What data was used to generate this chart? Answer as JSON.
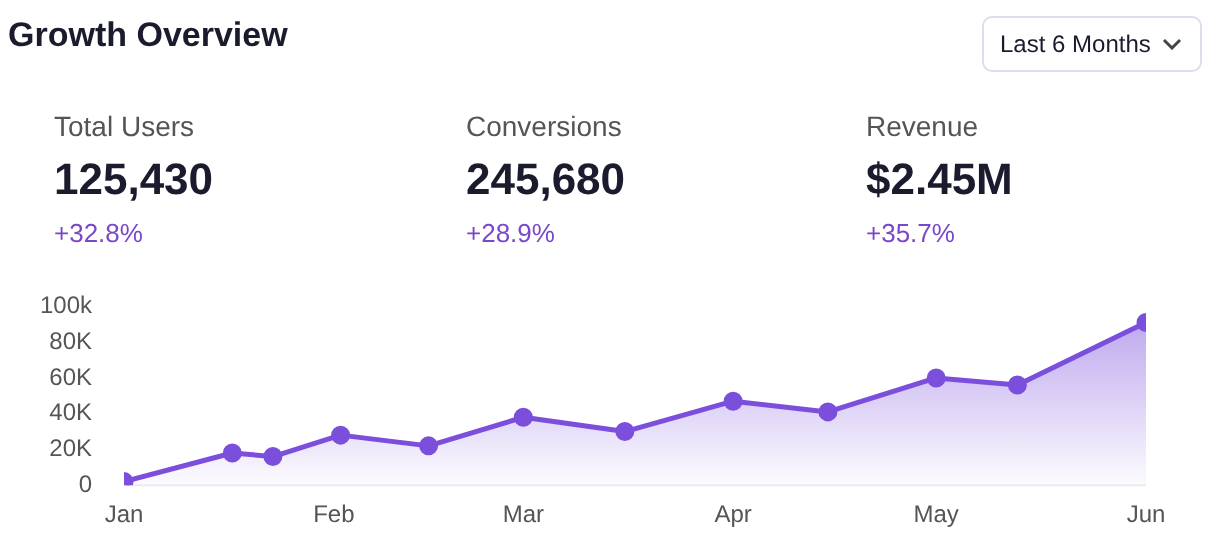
{
  "chart_data": {
    "type": "area",
    "title": "Growth Overview",
    "annotations": [
      "Last 6 Months",
      "Total Users",
      "125,430",
      "+32.8%",
      "Conversions",
      "245,680",
      "+28.9%",
      "Revenue",
      "$2.45M",
      "+35.7%"
    ],
    "x": [
      "--01-01",
      "--01-17",
      "--01-23",
      "--02-02",
      "--02-15",
      "--03-01",
      "--03-16",
      "--04-01",
      "--04-15",
      "--05-01",
      "--05-13",
      "--06-01"
    ],
    "series": [
      {
        "color": "#7b4fdc",
        "values": [
          2000,
          18000,
          16000,
          28000,
          22000,
          38000,
          30000,
          47000,
          41000,
          60000,
          56000,
          91000
        ]
      }
    ],
    "xlim": [
      "--01-01",
      "--06-01"
    ],
    "xticks": [
      {
        "value": "--01-01",
        "label": "Jan"
      },
      {
        "value": "--02-01",
        "label": "Feb"
      },
      {
        "value": "--03-01",
        "label": "Mar"
      },
      {
        "value": "--04-01",
        "label": "Apr"
      },
      {
        "value": "--05-01",
        "label": "May"
      },
      {
        "value": "--06-01",
        "label": "Jun"
      }
    ],
    "ylim": [
      0,
      100000
    ],
    "yticks": [
      {
        "value": 0,
        "label": "0"
      },
      {
        "value": 20000,
        "label": "20K"
      },
      {
        "value": 40000,
        "label": "40K"
      },
      {
        "value": 60000,
        "label": "60K"
      },
      {
        "value": 80000,
        "label": "80K"
      },
      {
        "value": 100000,
        "label": "100k"
      }
    ],
    "grid": false,
    "legend": false,
    "marker": "circle",
    "line_style": "solid"
  }
}
